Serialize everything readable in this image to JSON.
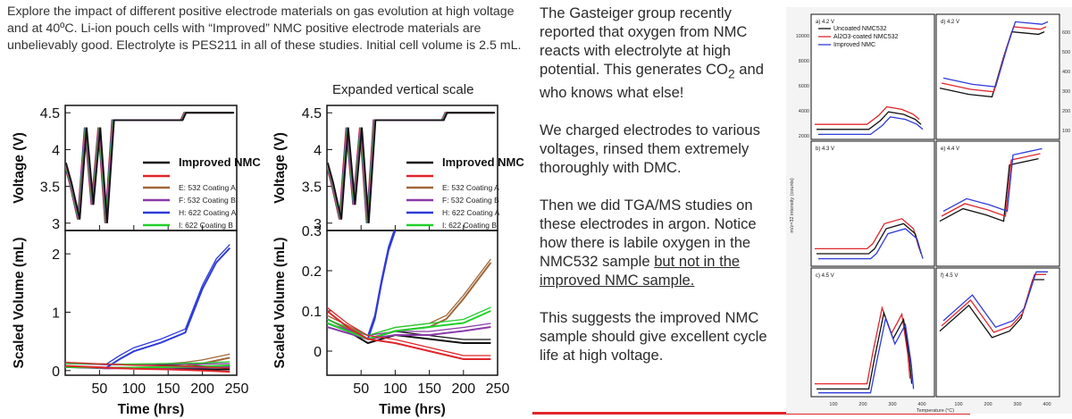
{
  "slide": {
    "intro_text": "Explore the impact of different positive electrode materials on gas evolution at high voltage and at 40ºC.  Li-ion pouch cells with “Improved” NMC positive electrode materials are unbelievably good.  Electrolyte is PES211 in all of these studies.  Initial cell volume is 2.5 mL.",
    "expanded_caption": "Expanded vertical scale",
    "right_text": {
      "para1": "The Gasteiger group recently reported that oxygen from NMC reacts with electrolyte at high potential. This generates CO",
      "para1_sub": "2",
      "para1_end": " and who knows what else!",
      "para2": "We charged electrodes to various voltages, rinsed them extremely thoroughly with DMC.",
      "para3": "Then we did TGA/MS studies on these electrodes in argon. Notice how there is labile oxygen in the NMC532 sample ",
      "para3_underlined": "but not in the improved NMC sample.",
      "para4": "This suggests the improved NMC sample should give excellent cycle life at high voltage."
    }
  },
  "chart_data": [
    {
      "type": "line",
      "title": "",
      "xlabel": "Time (hrs)",
      "xticks": [
        "50",
        "100",
        "150",
        "200",
        "250"
      ],
      "xlim": [
        0,
        250
      ],
      "top_panel": {
        "ylabel": "Voltage (V)",
        "yticks": [
          "3",
          "3.5",
          "4",
          "4.5"
        ],
        "ylim": [
          2.9,
          4.6
        ]
      },
      "bottom_panel": {
        "ylabel": "Scaled Volume (mL)",
        "yticks": [
          "0",
          "1",
          "2"
        ],
        "ylim": [
          -0.08,
          2.4
        ]
      },
      "legend": {
        "title": "Improved NMC",
        "entries": [
          "E: 532 Coating A",
          "F: 532 Coating B",
          "H: 622 Coating A",
          "I: 622 Coating B"
        ]
      },
      "series": [
        {
          "name": "Improved NMC",
          "color": "#111111",
          "volume_x": [
            0,
            60,
            100,
            150,
            200,
            240
          ],
          "volume_y": [
            0.06,
            0.05,
            0.04,
            0.03,
            0.02,
            0.02
          ]
        },
        {
          "name": "E: 532 Coating A",
          "color": "#a0663a",
          "volume_x": [
            0,
            60,
            100,
            150,
            175,
            200,
            240
          ],
          "volume_y": [
            0.07,
            0.04,
            0.05,
            0.06,
            0.08,
            0.12,
            0.22
          ]
        },
        {
          "name": "F: 532 Coating B",
          "color": "#8a3aa8",
          "volume_x": [
            0,
            60,
            100,
            150,
            200,
            240
          ],
          "volume_y": [
            0.06,
            0.04,
            0.04,
            0.05,
            0.05,
            0.06
          ]
        },
        {
          "name": "H: 622 Coating A",
          "color": "#2f3bd8",
          "volume_x": [
            0,
            60,
            80,
            100,
            140,
            175,
            200,
            220,
            240
          ],
          "volume_y": [
            0.06,
            0.05,
            0.2,
            0.33,
            0.48,
            0.65,
            1.4,
            1.85,
            2.1
          ]
        },
        {
          "name": "I: 622 Coating B",
          "color": "#22d02a",
          "volume_x": [
            0,
            60,
            100,
            150,
            200,
            240
          ],
          "volume_y": [
            0.06,
            0.05,
            0.05,
            0.06,
            0.07,
            0.09
          ]
        },
        {
          "name": "",
          "color": "#e0262b",
          "volume_x": [
            0,
            60,
            100,
            150,
            200,
            240
          ],
          "volume_y": [
            0.08,
            0.05,
            0.03,
            0.02,
            0.0,
            -0.02
          ]
        }
      ]
    },
    {
      "type": "line",
      "title": "Expanded vertical scale",
      "xlabel": "Time (hrs)",
      "xticks": [
        "50",
        "100",
        "150",
        "200",
        "250"
      ],
      "xlim": [
        0,
        250
      ],
      "top_panel": {
        "ylabel": "Voltage (V)",
        "yticks": [
          "3",
          "3.5",
          "4",
          "4.5"
        ],
        "ylim": [
          2.9,
          4.6
        ]
      },
      "bottom_panel": {
        "ylabel": "Scaled Volume (mL)",
        "yticks": [
          "0",
          "0.1",
          "0.2",
          "0.3"
        ],
        "ylim": [
          -0.06,
          0.3
        ]
      },
      "legend": {
        "title": "Improved NMC",
        "entries": [
          "E: 532 Coating A",
          "F: 532 Coating B",
          "H: 622 Coating A",
          "I: 622 Coating B"
        ]
      },
      "series": [
        {
          "name": "Improved NMC",
          "color": "#111111",
          "volume_x": [
            0,
            30,
            60,
            100,
            150,
            200,
            240
          ],
          "volume_y": [
            0.07,
            0.05,
            0.02,
            0.04,
            0.03,
            0.02,
            0.02
          ]
        },
        {
          "name": "E: 532 Coating A",
          "color": "#a0663a",
          "volume_x": [
            0,
            60,
            100,
            150,
            175,
            200,
            240
          ],
          "volume_y": [
            0.08,
            0.03,
            0.05,
            0.06,
            0.08,
            0.13,
            0.22
          ]
        },
        {
          "name": "F: 532 Coating B",
          "color": "#8a3aa8",
          "volume_x": [
            0,
            60,
            100,
            150,
            200,
            240
          ],
          "volume_y": [
            0.06,
            0.03,
            0.04,
            0.04,
            0.05,
            0.06
          ]
        },
        {
          "name": "H: 622 Coating A",
          "color": "#2f3bd8",
          "volume_x": [
            0,
            60,
            70,
            80,
            90,
            100
          ],
          "volume_y": [
            0.07,
            0.03,
            0.08,
            0.17,
            0.25,
            0.3
          ]
        },
        {
          "name": "I: 622 Coating B",
          "color": "#22d02a",
          "volume_x": [
            0,
            60,
            100,
            150,
            200,
            240
          ],
          "volume_y": [
            0.07,
            0.03,
            0.05,
            0.06,
            0.07,
            0.1
          ]
        },
        {
          "name": "",
          "color": "#e0262b",
          "volume_x": [
            0,
            30,
            60,
            100,
            150,
            200,
            240
          ],
          "volume_y": [
            0.1,
            0.06,
            0.03,
            0.02,
            0.0,
            -0.02,
            -0.02
          ]
        }
      ]
    },
    {
      "type": "line",
      "title": "",
      "xlabel": "Temperature (°C)",
      "ylabel": "m/z=32 intensity (counts)",
      "xticks": [
        "100",
        "200",
        "300",
        "400"
      ],
      "left_yticks": [
        "2000",
        "4000",
        "6000",
        "8000",
        "10000"
      ],
      "right_yticks": [
        "100",
        "200",
        "300",
        "400",
        "500",
        "600"
      ],
      "legend": [
        "Uncoated NMC532",
        "Al2O3-coated NMC532",
        "Improved NMC"
      ],
      "series_colors": [
        "#111111",
        "#e0262b",
        "#2f3bd8"
      ],
      "panels": [
        {
          "label": "a) 4.2 V"
        },
        {
          "label": "b) 4.3 V"
        },
        {
          "label": "c) 4.5 V"
        },
        {
          "label": "d) 4.2 V"
        },
        {
          "label": "e) 4.4 V"
        },
        {
          "label": "f) 4.5 V"
        }
      ]
    }
  ]
}
